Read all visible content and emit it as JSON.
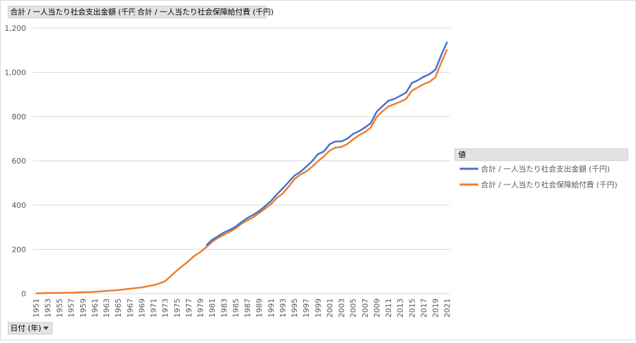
{
  "chart_data": {
    "type": "line",
    "x_label": "日付 (年)",
    "legend_title": "値",
    "legend": "right",
    "grid": true,
    "categories": [
      "1951",
      null,
      "1953",
      null,
      "1955",
      null,
      "1957",
      null,
      "1959",
      null,
      "1961",
      null,
      "1963",
      null,
      "1965",
      null,
      "1967",
      null,
      "1969",
      null,
      "1971",
      null,
      "1973",
      null,
      "1975",
      null,
      "1977",
      null,
      "1979",
      null,
      "1981",
      null,
      "1983",
      null,
      "1985",
      null,
      "1987",
      null,
      "1989",
      null,
      "1991",
      null,
      "1993",
      null,
      "1995",
      null,
      "1997",
      null,
      "1999",
      null,
      "2001",
      null,
      "2003",
      null,
      "2005",
      null,
      "2007",
      null,
      "2009",
      null,
      "2011",
      null,
      "2013",
      null,
      "2015",
      null,
      "2017",
      null,
      "2019",
      null,
      "2021"
    ],
    "ylim": [
      0,
      1200
    ],
    "yticks": [
      0,
      200,
      400,
      600,
      800,
      {
        "value": 1000,
        "label": "1,000"
      },
      {
        "value": 1200,
        "label": "1,200"
      }
    ],
    "series": [
      {
        "name": "合計 / 一人当たり社会支出金額 (千円)",
        "color": "#4472c4",
        "values": [
          null,
          null,
          null,
          null,
          null,
          null,
          null,
          null,
          null,
          null,
          null,
          null,
          null,
          null,
          null,
          null,
          null,
          null,
          null,
          null,
          null,
          null,
          null,
          null,
          null,
          null,
          null,
          null,
          null,
          218,
          243,
          259,
          276,
          288,
          303,
          323,
          342,
          356,
          373,
          395,
          418,
          448,
          475,
          504,
          533,
          550,
          573,
          598,
          630,
          642,
          675,
          688,
          688,
          700,
          722,
          734,
          751,
          770,
          822,
          847,
          872,
          880,
          894,
          908,
          952,
          964,
          980,
          992,
          1012,
          1078,
          1138
        ]
      },
      {
        "name": "合計 / 一人当たり社会保障給付費 (千円)",
        "color": "#ed7d31",
        "values": [
          1,
          2,
          3,
          3,
          3,
          4,
          4,
          5,
          6,
          7,
          8,
          10,
          12,
          14,
          16,
          19,
          22,
          25,
          28,
          33,
          38,
          46,
          56,
          80,
          104,
          126,
          147,
          171,
          188,
          210,
          234,
          252,
          266,
          279,
          295,
          316,
          331,
          345,
          364,
          384,
          404,
          432,
          452,
          483,
          517,
          538,
          552,
          573,
          598,
          620,
          646,
          660,
          663,
          676,
          697,
          716,
          730,
          750,
          798,
          824,
          846,
          856,
          867,
          880,
          917,
          932,
          947,
          957,
          978,
          1044,
          1104
        ]
      }
    ]
  }
}
